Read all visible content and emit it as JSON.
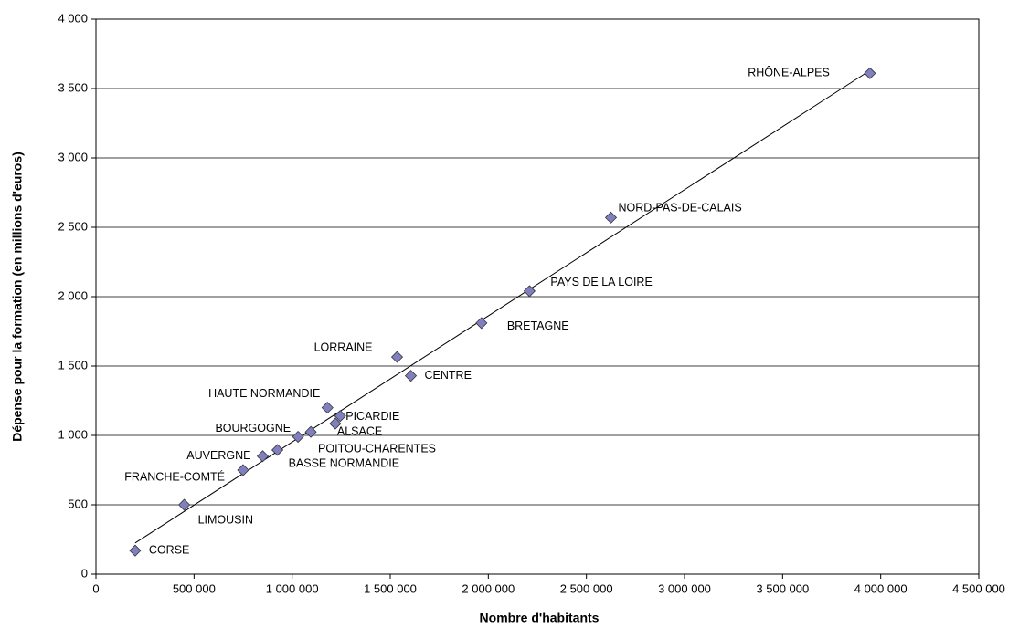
{
  "chart_data": {
    "type": "scatter",
    "x_label": "Nombre d'habitants",
    "y_label": "Dépense pour la formation (en millions d'euros)",
    "labels": [
      "CORSE",
      "LIMOUSIN",
      "FRANCHE-COMTÉ",
      "AUVERGNE",
      "BASSE NORMANDIE",
      "BOURGOGNE",
      "POITOU-CHARENTES",
      "ALSACE",
      "PICARDIE",
      "HAUTE NORMANDIE",
      "LORRAINE",
      "CENTRE",
      "BRETAGNE",
      "PAYS DE LA LOIRE",
      "NORD-PAS-DE-CALAIS",
      "RHÔNE-ALPES"
    ],
    "x": [
      200000,
      450000,
      750000,
      850000,
      925000,
      1030000,
      1095000,
      1220000,
      1245000,
      1180000,
      1535000,
      1605000,
      1965000,
      2210000,
      2625000,
      3945000
    ],
    "values": [
      170,
      500,
      750,
      850,
      895,
      990,
      1025,
      1085,
      1140,
      1200,
      1565,
      1430,
      1810,
      2040,
      2570,
      3610
    ],
    "color": "#8080c0",
    "trendline": {
      "x": [
        200000,
        3945000
      ],
      "y": [
        225,
        3630
      ]
    },
    "xlim": [
      0,
      4500000
    ],
    "xticks": [
      0,
      {
        "value": 500000,
        "label": "500 000"
      },
      {
        "value": 1000000,
        "label": "1 000 000"
      },
      {
        "value": 1500000,
        "label": "1 500 000"
      },
      {
        "value": 2000000,
        "label": "2 000 000"
      },
      {
        "value": 2500000,
        "label": "2 500 000"
      },
      {
        "value": 3000000,
        "label": "3 000 000"
      },
      {
        "value": 3500000,
        "label": "3 500 000"
      },
      {
        "value": 4000000,
        "label": "4 000 000"
      },
      {
        "value": 4500000,
        "label": "4 500 000"
      }
    ],
    "ylim": [
      0,
      4000
    ],
    "yticks": [
      0,
      500,
      {
        "value": 1000,
        "label": "1 000"
      },
      {
        "value": 1500,
        "label": "1 500"
      },
      {
        "value": 2000,
        "label": "2 000"
      },
      {
        "value": 2500,
        "label": "2 500"
      },
      {
        "value": 3000,
        "label": "3 000"
      },
      {
        "value": 3500,
        "label": "3 500"
      },
      {
        "value": 4000,
        "label": "4 000"
      }
    ],
    "grid": true
  }
}
